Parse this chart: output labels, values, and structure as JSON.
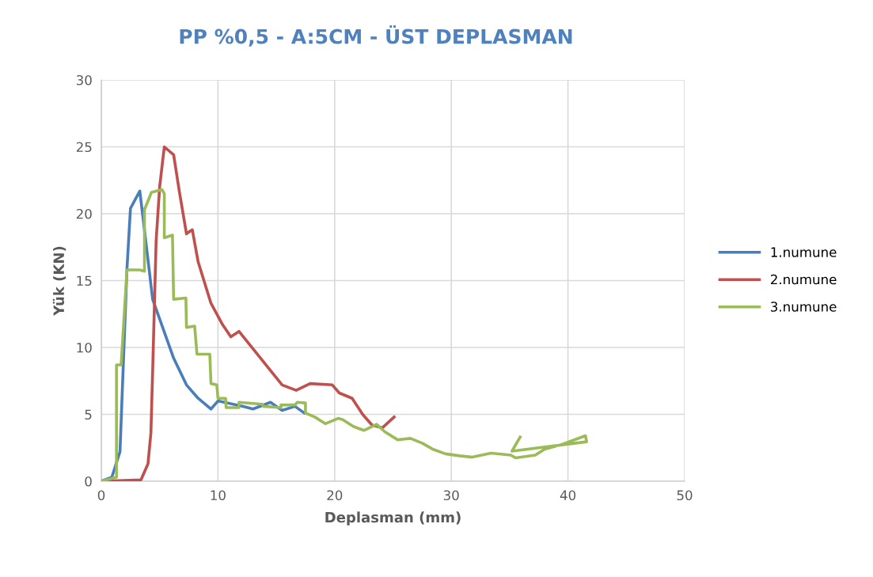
{
  "chart_data": {
    "type": "line",
    "title": "PP %0,5 - A:5CM - ÜST DEPLASMAN",
    "xlabel": "Deplasman (mm)",
    "ylabel": "Yük (KN)",
    "xlim": [
      0,
      50
    ],
    "xticks": [
      0,
      10,
      20,
      30,
      40,
      50
    ],
    "ylim": [
      0,
      30
    ],
    "yticks": [
      0,
      5,
      10,
      15,
      20,
      25,
      30
    ],
    "grid": true,
    "legend": "right",
    "marker": "none",
    "line_style": "solid",
    "series": [
      {
        "name": "1.numune",
        "color": "#4a7ebb",
        "x": [
          0,
          0.9,
          1.6,
          2.2,
          2.5,
          3.3,
          3.75,
          4.4,
          6.2,
          7.3,
          8.3,
          9.4,
          10,
          12.1,
          13,
          14.5,
          15.5,
          16.6,
          17.4
        ],
        "values": [
          0,
          0.3,
          2.2,
          15.9,
          20.4,
          21.7,
          18.4,
          13.6,
          9.2,
          7.2,
          6.2,
          5.4,
          6.0,
          5.6,
          5.4,
          5.9,
          5.3,
          5.6,
          5.1
        ]
      },
      {
        "name": "2.numune",
        "color": "#c0504d",
        "x": [
          0,
          3.4,
          4.0,
          4.25,
          4.4,
          4.7,
          5.0,
          5.4,
          6.2,
          6.7,
          7.3,
          7.8,
          8.3,
          9.4,
          10.4,
          11.1,
          11.8,
          15.5,
          16.7,
          17.9,
          19.8,
          20.4,
          21.5,
          22.4,
          23.2,
          24.1,
          25.1
        ],
        "values": [
          0,
          0.1,
          1.3,
          3.6,
          8.2,
          18,
          22,
          25,
          24.4,
          21.6,
          18.5,
          18.8,
          16.4,
          13.3,
          11.7,
          10.8,
          11.2,
          7.2,
          6.8,
          7.3,
          7.2,
          6.6,
          6.2,
          5.0,
          4.2,
          4.0,
          4.8
        ]
      },
      {
        "name": "3.numune",
        "color": "#9bbb59",
        "x": [
          0,
          1.3,
          1.3,
          1.7,
          2.2,
          3.3,
          3.7,
          3.7,
          4.3,
          5.2,
          5.4,
          5.4,
          6.1,
          6.2,
          7.25,
          7.3,
          8.0,
          8.2,
          9.3,
          9.4,
          9.9,
          10,
          10.65,
          10.7,
          11.8,
          11.8,
          13.8,
          13.9,
          15.4,
          15.4,
          16.6,
          16.8,
          17.5,
          17.5,
          18.3,
          19.2,
          20.3,
          20.7,
          21.6,
          22.5,
          23.6,
          24.3,
          25.4,
          26.5,
          27.5,
          28.4,
          29.5,
          30.7,
          31.8,
          33.4,
          35.1,
          35.5,
          37.2,
          38.0,
          39.5,
          41.5,
          41.6,
          35.2,
          35.9
        ],
        "values": [
          0,
          0.3,
          8.7,
          8.7,
          15.8,
          15.8,
          15.7,
          20.3,
          21.6,
          21.8,
          21.5,
          18.2,
          18.4,
          13.6,
          13.7,
          11.5,
          11.6,
          9.5,
          9.5,
          7.3,
          7.2,
          6.2,
          6.2,
          5.5,
          5.5,
          5.9,
          5.75,
          5.6,
          5.5,
          5.7,
          5.7,
          5.9,
          5.85,
          5.1,
          4.8,
          4.3,
          4.7,
          4.6,
          4.1,
          3.8,
          4.25,
          3.7,
          3.1,
          3.2,
          2.85,
          2.4,
          2.05,
          1.9,
          1.8,
          2.1,
          1.95,
          1.75,
          1.95,
          2.4,
          2.75,
          3.4,
          2.95,
          2.25,
          3.3
        ]
      }
    ]
  }
}
